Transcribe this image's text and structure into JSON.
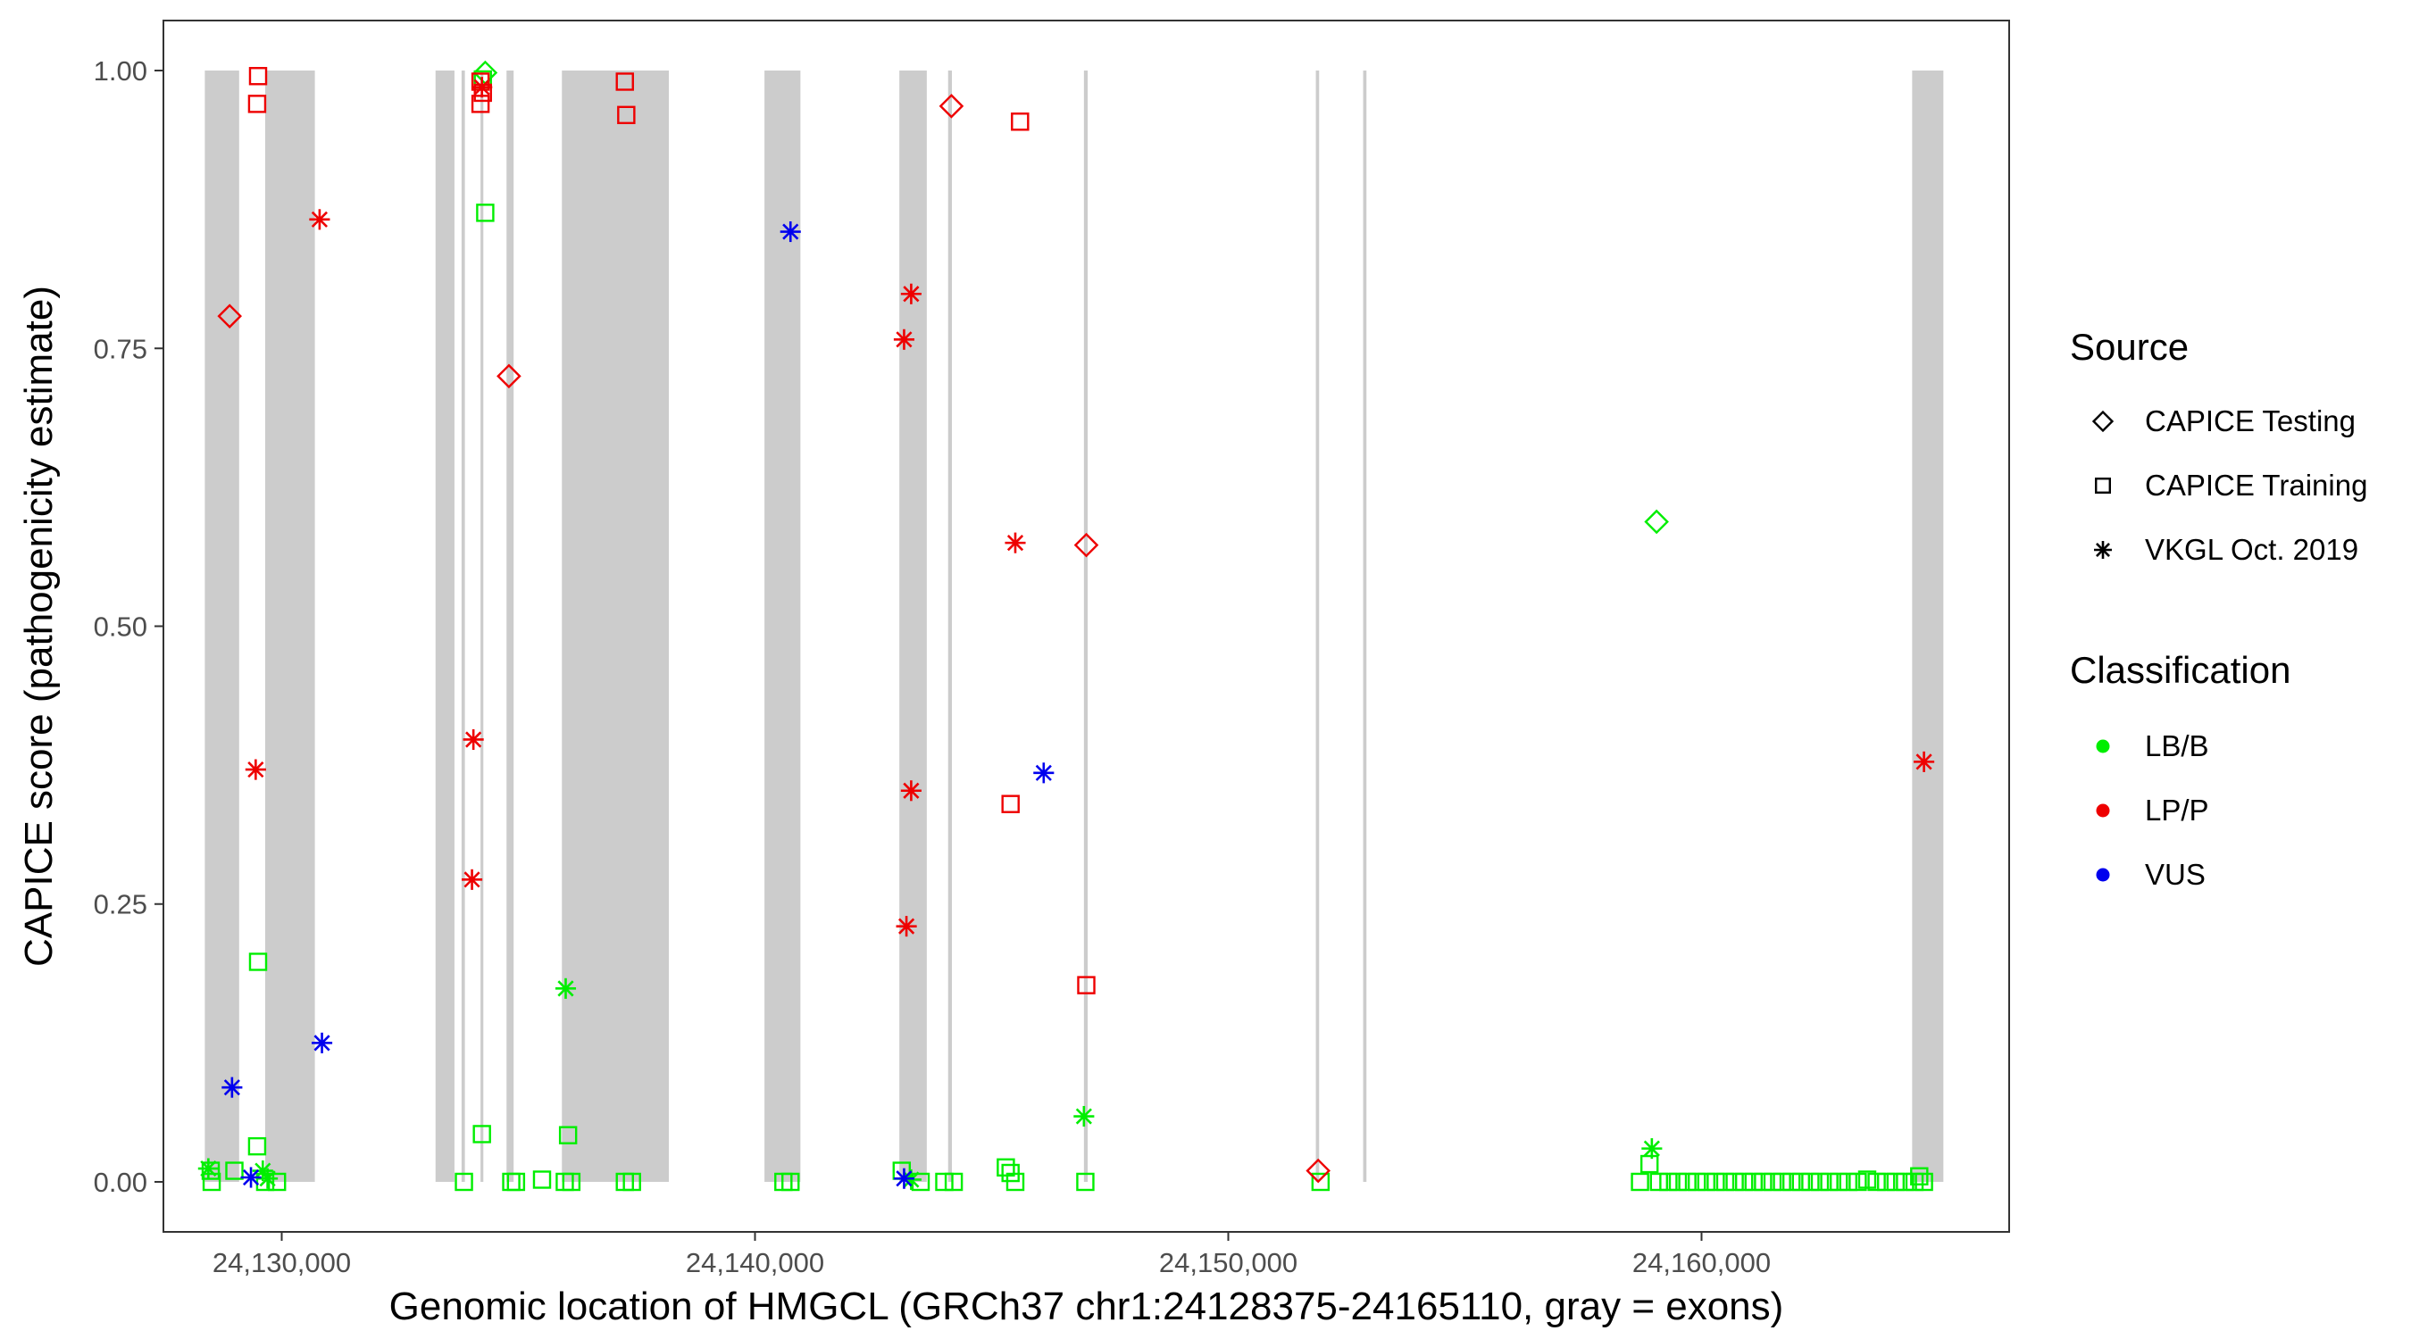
{
  "chart_data": {
    "type": "scatter",
    "xlabel": "Genomic location of HMGCL (GRCh37 chr1:24128375-24165110, gray = exons)",
    "ylabel": "CAPICE score (pathogenicity estimate)",
    "xlim": [
      24127500,
      24166500
    ],
    "ylim": [
      -0.045,
      1.045
    ],
    "x_ticks": [
      24130000,
      24140000,
      24150000,
      24160000
    ],
    "x_tick_labels": [
      "24,130,000",
      "24,140,000",
      "24,150,000",
      "24,160,000"
    ],
    "y_ticks": [
      0,
      0.25,
      0.5,
      0.75,
      1
    ],
    "y_tick_labels": [
      "0.00",
      "0.25",
      "0.50",
      "0.75",
      "1.00"
    ],
    "grid": false,
    "exon_color": "#cccccc",
    "exons": [
      [
        24128375,
        24129100
      ],
      [
        24129650,
        24130700
      ],
      [
        24133250,
        24133650
      ],
      [
        24133800,
        24133870
      ],
      [
        24134200,
        24134260
      ],
      [
        24134750,
        24134900
      ],
      [
        24135920,
        24138180
      ],
      [
        24140200,
        24140960
      ],
      [
        24143050,
        24143630
      ],
      [
        24144080,
        24144160
      ],
      [
        24146950,
        24147030
      ],
      [
        24151850,
        24151920
      ],
      [
        24152850,
        24152920
      ],
      [
        24164450,
        24165110
      ]
    ],
    "legends": [
      {
        "title": "Source",
        "items": [
          {
            "label": "CAPICE Testing",
            "shape": "diamond"
          },
          {
            "label": "CAPICE Training",
            "shape": "square"
          },
          {
            "label": "VKGL Oct. 2019",
            "shape": "asterisk"
          }
        ]
      },
      {
        "title": "Classification",
        "items": [
          {
            "label": "LB/B",
            "color": "#00ee00"
          },
          {
            "label": "LP/P",
            "color": "#ee0000"
          },
          {
            "label": "VUS",
            "color": "#0000ee"
          }
        ]
      }
    ],
    "legend_position": "right",
    "series": [
      {
        "name": "LB/B",
        "color": "#00ee00",
        "points": [
          [
            24128450,
            0.012,
            "asterisk"
          ],
          [
            24128500,
            0.01,
            "square"
          ],
          [
            24128520,
            0.0,
            "square"
          ],
          [
            24129000,
            0.01,
            "square"
          ],
          [
            24129500,
            0.198,
            "square"
          ],
          [
            24129480,
            0.032,
            "square"
          ],
          [
            24129600,
            0.01,
            "asterisk"
          ],
          [
            24129700,
            0.003,
            "asterisk"
          ],
          [
            24129650,
            0.0,
            "square"
          ],
          [
            24129900,
            0.0,
            "square"
          ],
          [
            24134250,
            0.992,
            "square"
          ],
          [
            24134300,
            0.872,
            "square"
          ],
          [
            24134230,
            0.043,
            "square"
          ],
          [
            24134300,
            0.998,
            "diamond"
          ],
          [
            24133850,
            0.0,
            "square"
          ],
          [
            24134850,
            0.0,
            "square"
          ],
          [
            24134950,
            0.0,
            "square"
          ],
          [
            24135500,
            0.002,
            "square"
          ],
          [
            24136000,
            0.174,
            "asterisk"
          ],
          [
            24136050,
            0.042,
            "square"
          ],
          [
            24135980,
            0.0,
            "square"
          ],
          [
            24136120,
            0.0,
            "square"
          ],
          [
            24137250,
            0.0,
            "square"
          ],
          [
            24137400,
            0.0,
            "square"
          ],
          [
            24140600,
            0.0,
            "square"
          ],
          [
            24140750,
            0.0,
            "square"
          ],
          [
            24143100,
            0.01,
            "square"
          ],
          [
            24143300,
            0.002,
            "asterisk"
          ],
          [
            24143500,
            0.0,
            "square"
          ],
          [
            24144000,
            0.0,
            "square"
          ],
          [
            24144200,
            0.0,
            "square"
          ],
          [
            24145300,
            0.013,
            "square"
          ],
          [
            24145400,
            0.008,
            "square"
          ],
          [
            24145500,
            0.0,
            "square"
          ],
          [
            24146950,
            0.059,
            "asterisk"
          ],
          [
            24146980,
            0.0,
            "square"
          ],
          [
            24151950,
            0.0,
            "square"
          ],
          [
            24158700,
            0.0,
            "square"
          ],
          [
            24158900,
            0.016,
            "square"
          ],
          [
            24158950,
            0.03,
            "asterisk"
          ],
          [
            24159050,
            0.594,
            "diamond"
          ],
          [
            24159100,
            0.0,
            "square"
          ],
          [
            24159300,
            0.0,
            "square"
          ],
          [
            24159500,
            0.0,
            "square"
          ],
          [
            24159700,
            0.0,
            "square"
          ],
          [
            24159900,
            0.0,
            "square"
          ],
          [
            24160100,
            0.0,
            "square"
          ],
          [
            24160300,
            0.0,
            "square"
          ],
          [
            24160500,
            0.0,
            "square"
          ],
          [
            24160700,
            0.0,
            "square"
          ],
          [
            24160900,
            0.0,
            "square"
          ],
          [
            24161100,
            0.0,
            "square"
          ],
          [
            24161300,
            0.0,
            "square"
          ],
          [
            24161500,
            0.0,
            "square"
          ],
          [
            24161700,
            0.0,
            "square"
          ],
          [
            24161900,
            0.0,
            "square"
          ],
          [
            24162100,
            0.0,
            "square"
          ],
          [
            24162300,
            0.0,
            "square"
          ],
          [
            24162500,
            0.0,
            "square"
          ],
          [
            24162700,
            0.0,
            "square"
          ],
          [
            24162900,
            0.0,
            "square"
          ],
          [
            24163100,
            0.0,
            "square"
          ],
          [
            24163300,
            0.0,
            "square"
          ],
          [
            24163500,
            0.002,
            "square"
          ],
          [
            24163700,
            0.0,
            "square"
          ],
          [
            24163900,
            0.0,
            "square"
          ],
          [
            24164100,
            0.0,
            "square"
          ],
          [
            24164300,
            0.0,
            "square"
          ],
          [
            24164500,
            0.0,
            "square"
          ],
          [
            24164600,
            0.005,
            "square"
          ],
          [
            24164700,
            0.0,
            "square"
          ]
        ]
      },
      {
        "name": "LP/P",
        "color": "#ee0000",
        "points": [
          [
            24129500,
            0.995,
            "square"
          ],
          [
            24129480,
            0.97,
            "square"
          ],
          [
            24128900,
            0.779,
            "diamond"
          ],
          [
            24130800,
            0.866,
            "asterisk"
          ],
          [
            24129450,
            0.371,
            "asterisk"
          ],
          [
            24134200,
            0.99,
            "square"
          ],
          [
            24134230,
            0.985,
            "asterisk"
          ],
          [
            24134250,
            0.98,
            "square"
          ],
          [
            24134200,
            0.97,
            "square"
          ],
          [
            24134800,
            0.725,
            "diamond"
          ],
          [
            24134050,
            0.398,
            "asterisk"
          ],
          [
            24134020,
            0.272,
            "asterisk"
          ],
          [
            24137250,
            0.99,
            "square"
          ],
          [
            24137280,
            0.96,
            "square"
          ],
          [
            24144150,
            0.968,
            "diamond"
          ],
          [
            24145600,
            0.954,
            "square"
          ],
          [
            24143300,
            0.799,
            "asterisk"
          ],
          [
            24143150,
            0.758,
            "asterisk"
          ],
          [
            24145500,
            0.575,
            "asterisk"
          ],
          [
            24147000,
            0.573,
            "diamond"
          ],
          [
            24143300,
            0.352,
            "asterisk"
          ],
          [
            24145400,
            0.34,
            "square"
          ],
          [
            24143200,
            0.23,
            "asterisk"
          ],
          [
            24147000,
            0.177,
            "square"
          ],
          [
            24151900,
            0.01,
            "diamond"
          ],
          [
            24164700,
            0.378,
            "asterisk"
          ]
        ]
      },
      {
        "name": "VUS",
        "color": "#0000ee",
        "points": [
          [
            24140750,
            0.855,
            "asterisk"
          ],
          [
            24146100,
            0.368,
            "asterisk"
          ],
          [
            24130850,
            0.125,
            "asterisk"
          ],
          [
            24128950,
            0.085,
            "asterisk"
          ],
          [
            24129350,
            0.004,
            "asterisk"
          ],
          [
            24143150,
            0.003,
            "asterisk"
          ]
        ]
      }
    ]
  }
}
